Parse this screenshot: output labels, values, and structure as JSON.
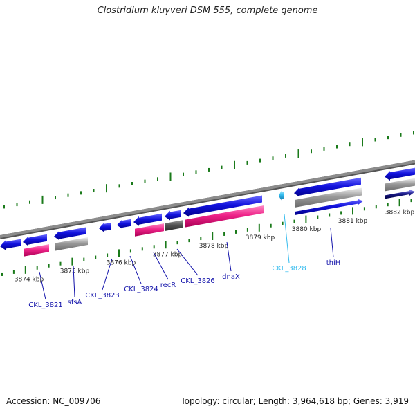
{
  "title": "Clostridium kluyveri DSM 555, complete genome",
  "footer": {
    "accession": "Accession: NC_009706",
    "summary": "Topology: circular; Length: 3,964,618 bp; Genes: 3,919"
  },
  "colors": {
    "background": "#ffffff",
    "backbone": "#8c8c8c",
    "tick": "#1a7a1a",
    "cds_forward": "#1111dd",
    "rna_pink": "#ee2288",
    "gray_feature": "#999999",
    "dark_gray_feature": "#555555",
    "label_blue": "#1111aa",
    "label_cyan": "#33bbee"
  },
  "scale_labels": [
    "3874 kbp",
    "3875 kbp",
    "3876 kbp",
    "3877 kbp",
    "3878 kbp",
    "3879 kbp",
    "3880 kbp",
    "3881 kbp",
    "3882 kbp"
  ],
  "gene_labels": [
    {
      "name": "CKL_3821",
      "color": "#1111aa"
    },
    {
      "name": "sfsA",
      "color": "#1111aa"
    },
    {
      "name": "CKL_3823",
      "color": "#1111aa"
    },
    {
      "name": "CKL_3824",
      "color": "#1111aa"
    },
    {
      "name": "recR",
      "color": "#1111aa"
    },
    {
      "name": "CKL_3826",
      "color": "#1111aa"
    },
    {
      "name": "dnaX",
      "color": "#1111aa"
    },
    {
      "name": "CKL_3828",
      "color": "#33bbee"
    },
    {
      "name": "thiH",
      "color": "#1111aa"
    }
  ]
}
